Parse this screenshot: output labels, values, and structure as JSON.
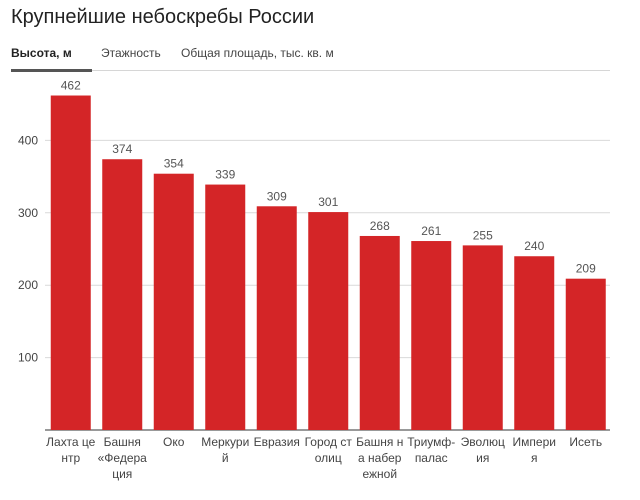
{
  "title": "Крупнейшие небоскребы России",
  "tabs": [
    {
      "label": "Высота, м",
      "active": true
    },
    {
      "label": "Этажность",
      "active": false
    },
    {
      "label": "Общая площадь, тыс. кв. м",
      "active": false
    }
  ],
  "chart_data": {
    "type": "bar",
    "categories": [
      "Лахта центр",
      "Башня «Федерация",
      "Око",
      "Меркурий",
      "Евразия",
      "Город столиц",
      "Башня на набережной",
      "Триумф-палас",
      "Эволюция",
      "Империя",
      "Исеть"
    ],
    "values": [
      462,
      374,
      354,
      339,
      309,
      301,
      268,
      261,
      255,
      240,
      209
    ],
    "yticks": [
      100,
      200,
      300,
      400
    ],
    "ylim": [
      0,
      480
    ],
    "grid": true,
    "bar_color": "#d42527",
    "xlabel": "",
    "ylabel": ""
  }
}
